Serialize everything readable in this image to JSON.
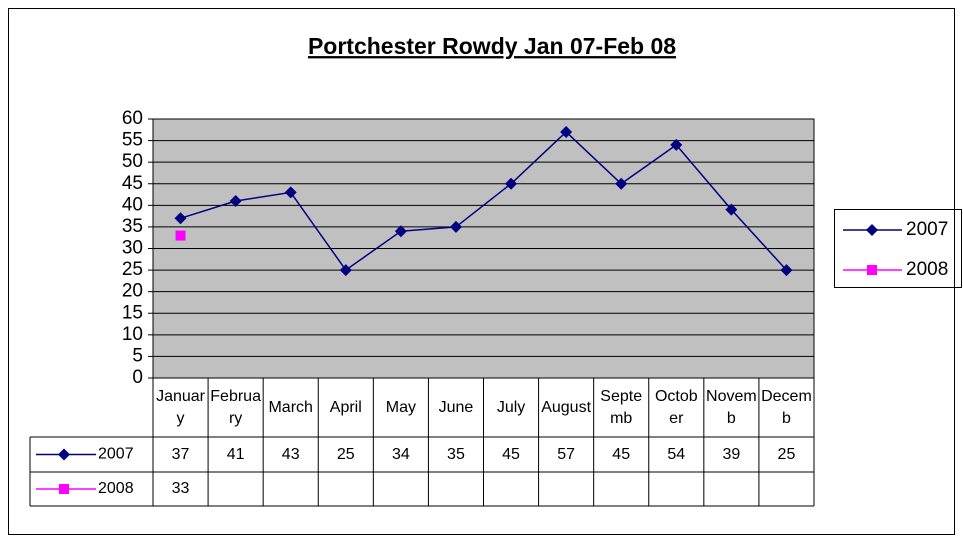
{
  "chart_data": {
    "type": "line",
    "title": "Portchester Rowdy Jan 07-Feb 08",
    "categories": [
      "January",
      "February",
      "March",
      "April",
      "May",
      "June",
      "July",
      "August",
      "Septemb",
      "October",
      "Novemb",
      "Decemb"
    ],
    "series": [
      {
        "name": "2007",
        "color": "#000080",
        "marker": "diamond",
        "values": [
          37,
          41,
          43,
          25,
          34,
          35,
          45,
          57,
          45,
          54,
          39,
          25
        ]
      },
      {
        "name": "2008",
        "color": "#ff00ff",
        "marker": "square",
        "values": [
          33,
          null,
          null,
          null,
          null,
          null,
          null,
          null,
          null,
          null,
          null,
          null
        ]
      }
    ],
    "ylim": [
      0,
      60
    ],
    "yticks": [
      0,
      5,
      10,
      15,
      20,
      25,
      30,
      35,
      40,
      45,
      50,
      55,
      60
    ],
    "grid": true,
    "legend": "right"
  }
}
